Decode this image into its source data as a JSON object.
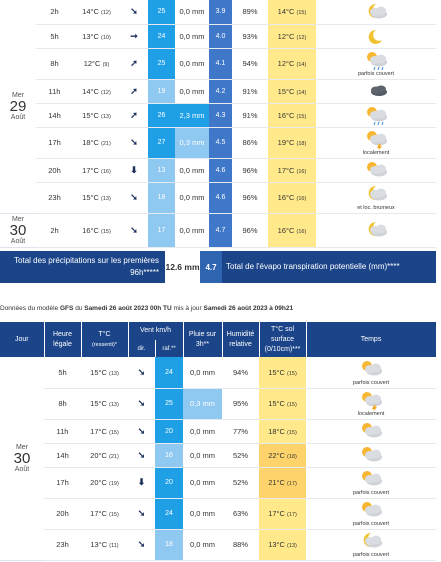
{
  "colors": {
    "header_bg": "#1c4589",
    "accent": "#1c4589"
  },
  "table1": {
    "day_mer29": {
      "name": "Mer",
      "num": "29",
      "month": "Août"
    },
    "day_mer30": {
      "name": "Mer",
      "num": "30",
      "month": "Août"
    },
    "rows": [
      {
        "hour": "2h",
        "temp": "14°C",
        "feel": "(12)",
        "wind_icon": "arrow-down-right",
        "wind": "25",
        "wind_bg": "#1f9fe6",
        "gust": "",
        "rain": "0,0 mm",
        "rain_bg": "",
        "etp": "3.9",
        "etp_bg": "#3f78c8",
        "hum": "89%",
        "sol": "14°C",
        "sol_feel": "(15)",
        "sol_bg": "#ffe98a",
        "sky": "partly-cloudy-night",
        "sky_label": ""
      },
      {
        "hour": "5h",
        "temp": "13°C",
        "feel": "(10)",
        "wind_icon": "arrow-right",
        "wind": "24",
        "wind_bg": "#1f9fe6",
        "gust": "",
        "rain": "0,0 mm",
        "rain_bg": "",
        "etp": "4.0",
        "etp_bg": "#3f78c8",
        "hum": "93%",
        "sol": "12°C",
        "sol_feel": "(12)",
        "sol_bg": "#ffe98a",
        "sky": "moon",
        "sky_label": ""
      },
      {
        "hour": "8h",
        "temp": "12°C",
        "feel": "(9)",
        "wind_icon": "arrow-up-right",
        "wind": "25",
        "wind_bg": "#1f9fe6",
        "gust": "",
        "rain": "0,0 mm",
        "rain_bg": "",
        "etp": "4.1",
        "etp_bg": "#3f78c8",
        "hum": "94%",
        "sol": "12°C",
        "sol_feel": "(14)",
        "sol_bg": "#ffe98a",
        "sky": "sun-rain-cloud",
        "sky_label": "parfois couvert"
      },
      {
        "hour": "11h",
        "temp": "14°C",
        "feel": "(12)",
        "wind_icon": "arrow-up",
        "wind": "19",
        "wind_bg": "#8fc8f0",
        "gust": "",
        "rain": "0,0 mm",
        "rain_bg": "",
        "etp": "4.2",
        "etp_bg": "#3f78c8",
        "hum": "91%",
        "sol": "15°C",
        "sol_feel": "(14)",
        "sol_bg": "#ffe98a",
        "sky": "dark-cloud",
        "sky_label": ""
      },
      {
        "hour": "14h",
        "temp": "15°C",
        "feel": "(13)",
        "wind_icon": "arrow-up",
        "wind": "26",
        "wind_bg": "#1f9fe6",
        "gust": "",
        "rain": "2,3 mm",
        "rain_bg": "#1f9fe6",
        "etp": "4.3",
        "etp_bg": "#3f78c8",
        "hum": "91%",
        "sol": "16°C",
        "sol_feel": "(15)",
        "sol_bg": "#ffe98a",
        "sky": "sun-rain",
        "sky_label": ""
      },
      {
        "hour": "17h",
        "temp": "18°C",
        "feel": "(21)",
        "wind_icon": "arrow-down-right",
        "wind": "27",
        "wind_bg": "#1f9fe6",
        "gust": "",
        "rain": "0,3 mm",
        "rain_bg": "#8fc8f0",
        "etp": "4.5",
        "etp_bg": "#3f78c8",
        "hum": "86%",
        "sol": "19°C",
        "sol_feel": "(18)",
        "sol_bg": "#ffe98a",
        "sky": "sun-storm",
        "sky_label": "localement"
      },
      {
        "hour": "20h",
        "temp": "17°C",
        "feel": "(16)",
        "wind_icon": "arrow-down",
        "wind": "13",
        "wind_bg": "#8fc8f0",
        "gust": "",
        "rain": "0,0 mm",
        "rain_bg": "",
        "etp": "4.6",
        "etp_bg": "#3f78c8",
        "hum": "96%",
        "sol": "17°C",
        "sol_feel": "(16)",
        "sol_bg": "#ffe98a",
        "sky": "sun-cloud",
        "sky_label": ""
      },
      {
        "hour": "23h",
        "temp": "15°C",
        "feel": "(13)",
        "wind_icon": "arrow-down-right",
        "wind": "18",
        "wind_bg": "#8fc8f0",
        "gust": "",
        "rain": "0,0 mm",
        "rain_bg": "",
        "etp": "4.6",
        "etp_bg": "#3f78c8",
        "hum": "96%",
        "sol": "16°C",
        "sol_feel": "(16)",
        "sol_bg": "#ffe98a",
        "sky": "cloud-moon",
        "sky_label": "et loc. brumeux"
      },
      {
        "hour": "2h",
        "temp": "16°C",
        "feel": "(15)",
        "wind_icon": "arrow-down-right",
        "wind": "17",
        "wind_bg": "#8fc8f0",
        "gust": "",
        "rain": "0,0 mm",
        "rain_bg": "",
        "etp": "4.7",
        "etp_bg": "#3f78c8",
        "hum": "96%",
        "sol": "16°C",
        "sol_feel": "(16)",
        "sol_bg": "#ffe98a",
        "sky": "cloud-moon",
        "sky_label": ""
      }
    ],
    "summary": {
      "rain_label": "Total des précipitations sur les premières 96h*****",
      "rain_total": "12.6 mm",
      "etp_total": "4.7",
      "etp_label": "Total de l'évapo transpiration potentielle (mm)****"
    }
  },
  "model_line": {
    "prefix": "Données du modèle",
    "model": "GFS",
    "mid": "du",
    "run": "Samedi 26 août 2023 00h TU",
    "update_txt": "mis à jour",
    "update": "Samedi 26 août 2023 à 09h21"
  },
  "table2": {
    "headers": {
      "jour": "Jour",
      "heure": "Heure légale",
      "temp": "T°C",
      "temp_sub": "(ressenti)*",
      "vent": "Vent km/h",
      "dir": "dir.",
      "raf": "raf.**",
      "pluie": "Pluie sur 3h**",
      "hum": "Humidité relative",
      "sol": "T°C sol surface (0/10cm)***",
      "temps": "Temps"
    },
    "day": {
      "name": "Mer",
      "num": "30",
      "month": "Août"
    },
    "rows": [
      {
        "hour": "5h",
        "temp": "15°C",
        "feel": "(13)",
        "wind_icon": "arrow-down-right",
        "wind": "24",
        "wind_bg": "#1f9fe6",
        "rain": "0,0 mm",
        "rain_bg": "",
        "hum": "94%",
        "sol": "15°C",
        "sol_feel": "(15)",
        "sol_bg": "#ffe98a",
        "sky": "sun-cloud",
        "sky_label": "parfois couvert"
      },
      {
        "hour": "8h",
        "temp": "15°C",
        "feel": "(13)",
        "wind_icon": "arrow-down-right",
        "wind": "25",
        "wind_bg": "#1f9fe6",
        "rain": "0,3 mm",
        "rain_bg": "#8fc8f0",
        "hum": "95%",
        "sol": "15°C",
        "sol_feel": "(15)",
        "sol_bg": "#ffe98a",
        "sky": "sun-storm",
        "sky_label": "localement"
      },
      {
        "hour": "11h",
        "temp": "17°C",
        "feel": "(15)",
        "wind_icon": "arrow-down-right",
        "wind": "20",
        "wind_bg": "#1f9fe6",
        "rain": "0,0 mm",
        "rain_bg": "",
        "hum": "77%",
        "sol": "18°C",
        "sol_feel": "(15)",
        "sol_bg": "#ffe98a",
        "sky": "sun-cloud",
        "sky_label": ""
      },
      {
        "hour": "14h",
        "temp": "20°C",
        "feel": "(21)",
        "wind_icon": "arrow-down-right",
        "wind": "16",
        "wind_bg": "#8fc8f0",
        "rain": "0,0 mm",
        "rain_bg": "",
        "hum": "52%",
        "sol": "22°C",
        "sol_feel": "(18)",
        "sol_bg": "#ffd36b",
        "sky": "sun-cloud",
        "sky_label": ""
      },
      {
        "hour": "17h",
        "temp": "20°C",
        "feel": "(19)",
        "wind_icon": "arrow-down",
        "wind": "20",
        "wind_bg": "#1f9fe6",
        "rain": "0,0 mm",
        "rain_bg": "",
        "hum": "52%",
        "sol": "21°C",
        "sol_feel": "(17)",
        "sol_bg": "#ffd36b",
        "sky": "sun-cloud",
        "sky_label": "parfois couvert"
      },
      {
        "hour": "20h",
        "temp": "17°C",
        "feel": "(15)",
        "wind_icon": "arrow-down-right",
        "wind": "24",
        "wind_bg": "#1f9fe6",
        "rain": "0,0 mm",
        "rain_bg": "",
        "hum": "63%",
        "sol": "17°C",
        "sol_feel": "(17)",
        "sol_bg": "#ffe98a",
        "sky": "sun-cloud",
        "sky_label": "parfois couvert"
      },
      {
        "hour": "23h",
        "temp": "13°C",
        "feel": "(11)",
        "wind_icon": "arrow-down-right",
        "wind": "18",
        "wind_bg": "#8fc8f0",
        "rain": "0,0 mm",
        "rain_bg": "",
        "hum": "88%",
        "sol": "13°C",
        "sol_feel": "(13)",
        "sol_bg": "#ffe98a",
        "sky": "cloud-moon",
        "sky_label": "parfois couvert"
      }
    ]
  }
}
